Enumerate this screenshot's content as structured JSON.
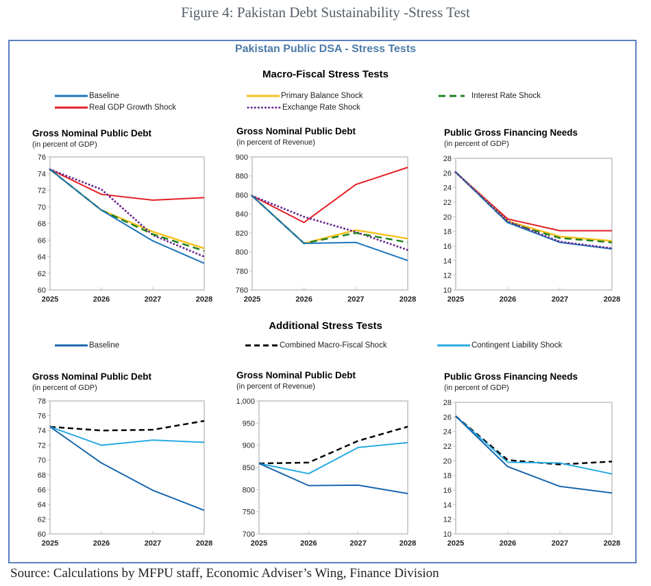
{
  "figure_title": "Figure 4: Pakistan Debt Sustainability -Stress Test",
  "panel_title": "Pakistan Public DSA - Stress Tests",
  "source": "Source: Calculations by MFPU staff, Economic Adviser’s Wing, Finance Division",
  "colors": {
    "baseline": "#1a74bb",
    "real_gdp": "#e31e24",
    "primary_balance": "#f5c01c",
    "exchange_rate": "#6a2c91",
    "interest_rate": "#1f7f1f",
    "baseline_dark": "#1766ad",
    "combined": "#000000",
    "contingent": "#27aae1",
    "frame": "#5b7fbf",
    "panel_title": "#4c7aa8"
  },
  "sections": {
    "macro": {
      "title": "Macro-Fiscal Stress Tests",
      "legend": [
        {
          "key": "baseline",
          "label": "Baseline"
        },
        {
          "key": "primary_balance",
          "label": "Primary Balance Shock"
        },
        {
          "key": "interest_rate",
          "label": "Interest Rate Shock"
        },
        {
          "key": "real_gdp",
          "label": "Real GDP Growth Shock"
        },
        {
          "key": "exchange_rate",
          "label": "Exchange Rate Shock"
        }
      ]
    },
    "additional": {
      "title": "Additional Stress Tests",
      "legend": [
        {
          "key": "baseline_dark",
          "label": "Baseline"
        },
        {
          "key": "combined",
          "label": "Combined Macro-Fiscal Shock"
        },
        {
          "key": "contingent",
          "label": "Contingent Liability Shock"
        }
      ]
    }
  },
  "chart_data": [
    {
      "type": "line",
      "title": "Gross Nominal Public Debt",
      "subtitle": "(in percent of GDP)",
      "x": [
        "2025",
        "2026",
        "2027",
        "2028"
      ],
      "ylim": [
        60,
        76
      ],
      "yticks": [
        60,
        62,
        64,
        66,
        68,
        70,
        72,
        74,
        76
      ],
      "series": [
        {
          "key": "real_gdp",
          "name": "Real GDP Growth Shock",
          "values": [
            74.5,
            71.5,
            70.8,
            71.1
          ]
        },
        {
          "key": "primary_balance",
          "name": "Primary Balance Shock",
          "values": [
            74.5,
            69.6,
            67.0,
            65.0
          ]
        },
        {
          "key": "exchange_rate",
          "name": "Exchange Rate Shock",
          "values": [
            74.5,
            72.1,
            66.6,
            64.0
          ]
        },
        {
          "key": "interest_rate",
          "name": "Interest Rate Shock",
          "values": [
            74.5,
            69.6,
            66.7,
            64.7
          ]
        },
        {
          "key": "baseline",
          "name": "Baseline",
          "values": [
            74.5,
            69.6,
            65.9,
            63.2
          ]
        }
      ]
    },
    {
      "type": "line",
      "title": "Gross Nominal Public Debt",
      "subtitle": "(in percent of Revenue)",
      "x": [
        "2025",
        "2026",
        "2027",
        "2028"
      ],
      "ylim": [
        760,
        900
      ],
      "yticks": [
        760,
        780,
        800,
        820,
        840,
        860,
        880,
        900
      ],
      "series": [
        {
          "key": "real_gdp",
          "name": "Real GDP Growth Shock",
          "values": [
            859,
            831,
            871,
            889
          ]
        },
        {
          "key": "primary_balance",
          "name": "Primary Balance Shock",
          "values": [
            859,
            809,
            823,
            814
          ]
        },
        {
          "key": "exchange_rate",
          "name": "Exchange Rate Shock",
          "values": [
            859,
            837,
            821,
            802
          ]
        },
        {
          "key": "interest_rate",
          "name": "Interest Rate Shock",
          "values": [
            859,
            809,
            820,
            810
          ]
        },
        {
          "key": "baseline",
          "name": "Baseline",
          "values": [
            859,
            809,
            810,
            791
          ]
        }
      ]
    },
    {
      "type": "line",
      "title": "Public Gross Financing Needs",
      "subtitle": "(in percent of GDP)",
      "x": [
        "2025",
        "2026",
        "2027",
        "2028"
      ],
      "ylim": [
        10,
        28
      ],
      "yticks": [
        10,
        12,
        14,
        16,
        18,
        20,
        22,
        24,
        26,
        28
      ],
      "series": [
        {
          "key": "real_gdp",
          "name": "Real GDP Growth Shock",
          "values": [
            26.1,
            19.7,
            18.1,
            18.1
          ]
        },
        {
          "key": "primary_balance",
          "name": "Primary Balance Shock",
          "values": [
            26.1,
            19.4,
            17.3,
            16.7
          ]
        },
        {
          "key": "interest_rate",
          "name": "Interest Rate Shock",
          "values": [
            26.1,
            19.2,
            17.1,
            16.5
          ]
        },
        {
          "key": "baseline",
          "name": "Baseline",
          "values": [
            26.1,
            19.2,
            16.5,
            15.6
          ]
        },
        {
          "key": "exchange_rate",
          "name": "Exchange Rate Shock",
          "values": [
            26.1,
            19.4,
            16.6,
            15.7
          ]
        }
      ]
    },
    {
      "type": "line",
      "title": "Gross Nominal Public Debt",
      "subtitle": "(in percent of GDP)",
      "x": [
        "2025",
        "2026",
        "2027",
        "2028"
      ],
      "ylim": [
        60,
        78
      ],
      "yticks": [
        60,
        62,
        64,
        66,
        68,
        70,
        72,
        74,
        76,
        78
      ],
      "series": [
        {
          "key": "combined",
          "name": "Combined Macro-Fiscal Shock",
          "values": [
            74.5,
            74.0,
            74.1,
            75.3
          ]
        },
        {
          "key": "contingent",
          "name": "Contingent Liability Shock",
          "values": [
            74.5,
            72.0,
            72.7,
            72.4
          ]
        },
        {
          "key": "baseline_dark",
          "name": "Baseline",
          "values": [
            74.5,
            69.6,
            65.9,
            63.2
          ]
        }
      ]
    },
    {
      "type": "line",
      "title": "Gross Nominal Public Debt",
      "subtitle": "(in percent of Revenue)",
      "x": [
        "2025",
        "2026",
        "2027",
        "2028"
      ],
      "ylim": [
        700,
        1000
      ],
      "yticks": [
        700,
        750,
        800,
        850,
        900,
        950,
        1000
      ],
      "yticklabels": [
        "700",
        "750",
        "800",
        "850",
        "900",
        "950",
        "1,000"
      ],
      "series": [
        {
          "key": "combined",
          "name": "Combined Macro-Fiscal Shock",
          "values": [
            859,
            861,
            910,
            942
          ]
        },
        {
          "key": "contingent",
          "name": "Contingent Liability Shock",
          "values": [
            859,
            836,
            895,
            906
          ]
        },
        {
          "key": "baseline_dark",
          "name": "Baseline",
          "values": [
            859,
            809,
            810,
            791
          ]
        }
      ]
    },
    {
      "type": "line",
      "title": "Public Gross Financing Needs",
      "subtitle": "(in percent of GDP)",
      "x": [
        "2025",
        "2026",
        "2027",
        "2028"
      ],
      "ylim": [
        10,
        28
      ],
      "yticks": [
        10,
        12,
        14,
        16,
        18,
        20,
        22,
        24,
        26,
        28
      ],
      "series": [
        {
          "key": "combined",
          "name": "Combined Macro-Fiscal Shock",
          "values": [
            26.1,
            20.1,
            19.5,
            19.9
          ]
        },
        {
          "key": "contingent",
          "name": "Contingent Liability Shock",
          "values": [
            26.1,
            19.8,
            19.7,
            18.2
          ]
        },
        {
          "key": "baseline_dark",
          "name": "Baseline",
          "values": [
            26.1,
            19.2,
            16.5,
            15.6
          ]
        }
      ]
    }
  ]
}
